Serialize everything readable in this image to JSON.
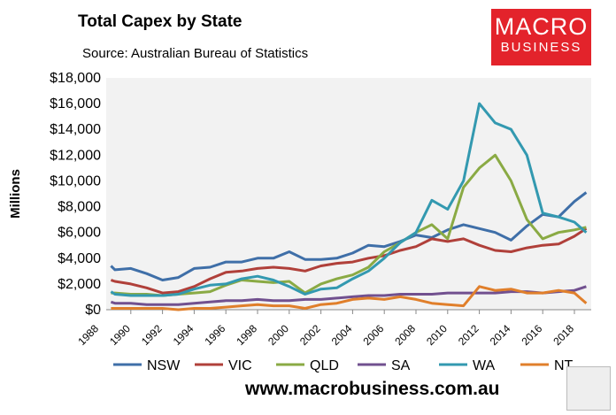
{
  "chart_data": {
    "type": "line",
    "title": "Total Capex by State",
    "subtitle": "Source: Australian Bureau of Statistics",
    "ylabel": "Millions",
    "xlabel": "",
    "ylim": [
      0,
      18000
    ],
    "xlim": [
      1988,
      2019
    ],
    "yticks": [
      "$0",
      "$2,000",
      "$4,000",
      "$6,000",
      "$8,000",
      "$10,000",
      "$12,000",
      "$14,000",
      "$16,000",
      "$18,000"
    ],
    "xticks": [
      "1988",
      "1990",
      "1992",
      "1994",
      "1996",
      "1998",
      "2000",
      "2002",
      "2004",
      "2006",
      "2008",
      "2010",
      "2012",
      "2014",
      "2016",
      "2018"
    ],
    "grid": false,
    "legend": "bottom",
    "x": [
      1988.75,
      1989,
      1990,
      1991,
      1992,
      1993,
      1994,
      1995,
      1996,
      1997,
      1998,
      1999,
      2000,
      2001,
      2002,
      2003,
      2004,
      2005,
      2006,
      2007,
      2008,
      2009,
      2010,
      2011,
      2012,
      2013,
      2014,
      2015,
      2016,
      2017,
      2018,
      2018.75
    ],
    "series": [
      {
        "name": "NSW",
        "color": "#3f6fa8",
        "values": [
          3400,
          3100,
          3200,
          2800,
          2300,
          2500,
          3200,
          3300,
          3700,
          3700,
          4000,
          4000,
          4500,
          3900,
          3900,
          4000,
          4400,
          5000,
          4900,
          5300,
          5800,
          5600,
          6200,
          6600,
          6300,
          6000,
          5400,
          6500,
          7400,
          7200,
          8400,
          9100
        ]
      },
      {
        "name": "VIC",
        "color": "#b0403a",
        "values": [
          2300,
          2200,
          2000,
          1700,
          1300,
          1400,
          1800,
          2400,
          2900,
          3000,
          3200,
          3300,
          3200,
          3000,
          3400,
          3600,
          3700,
          4000,
          4200,
          4600,
          4900,
          5500,
          5300,
          5500,
          5000,
          4600,
          4500,
          4800,
          5000,
          5100,
          5700,
          6300
        ]
      },
      {
        "name": "QLD",
        "color": "#8aaa44",
        "values": [
          1300,
          1300,
          1200,
          1200,
          1100,
          1200,
          1300,
          1400,
          1900,
          2300,
          2200,
          2100,
          2200,
          1300,
          2000,
          2400,
          2700,
          3300,
          4500,
          5200,
          6000,
          6600,
          5500,
          9500,
          11000,
          12000,
          10000,
          7000,
          5500,
          6000,
          6200,
          6400
        ]
      },
      {
        "name": "SA",
        "color": "#71508f",
        "values": [
          600,
          500,
          500,
          400,
          400,
          400,
          500,
          600,
          700,
          700,
          800,
          700,
          700,
          800,
          800,
          900,
          1000,
          1100,
          1100,
          1200,
          1200,
          1200,
          1300,
          1300,
          1300,
          1300,
          1400,
          1400,
          1300,
          1400,
          1500,
          1800
        ]
      },
      {
        "name": "WA",
        "color": "#3399b0",
        "values": [
          1400,
          1200,
          1100,
          1100,
          1100,
          1200,
          1600,
          1900,
          2000,
          2400,
          2600,
          2300,
          1800,
          1200,
          1600,
          1700,
          2400,
          3000,
          4000,
          5200,
          6000,
          8500,
          7800,
          10000,
          16000,
          14500,
          14000,
          12000,
          7500,
          7200,
          6800,
          6000
        ]
      },
      {
        "name": "NT",
        "color": "#e07f2b",
        "values": [
          100,
          100,
          100,
          100,
          100,
          0,
          100,
          100,
          200,
          300,
          400,
          300,
          300,
          100,
          400,
          500,
          800,
          900,
          800,
          1000,
          800,
          500,
          400,
          300,
          1800,
          1500,
          1600,
          1300,
          1300,
          1500,
          1300,
          500
        ]
      }
    ]
  },
  "logo": {
    "line1": "MACRO",
    "line2": "BUSINESS",
    "color": "#e3232b"
  },
  "footer": {
    "url": "www.macrobusiness.com.au"
  }
}
